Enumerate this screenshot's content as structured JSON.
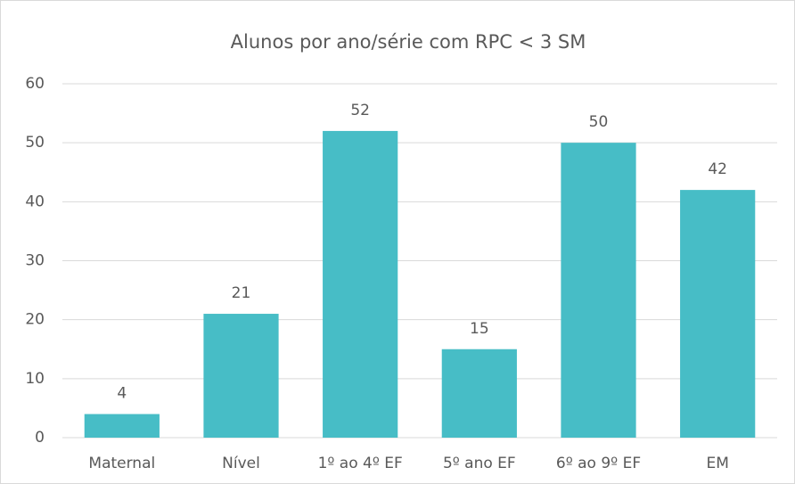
{
  "chart_data": {
    "type": "bar",
    "title": "Alunos por ano/série com RPC < 3 SM",
    "categories": [
      "Maternal",
      "Nível",
      "1º ao 4º EF",
      "5º ano EF",
      "6º ao 9º EF",
      "EM"
    ],
    "values": [
      4,
      21,
      52,
      15,
      50,
      42
    ],
    "color": "#47bdc6",
    "ylim": [
      0,
      60
    ],
    "yticks": [
      0,
      10,
      20,
      30,
      40,
      50,
      60
    ],
    "grid": true
  }
}
